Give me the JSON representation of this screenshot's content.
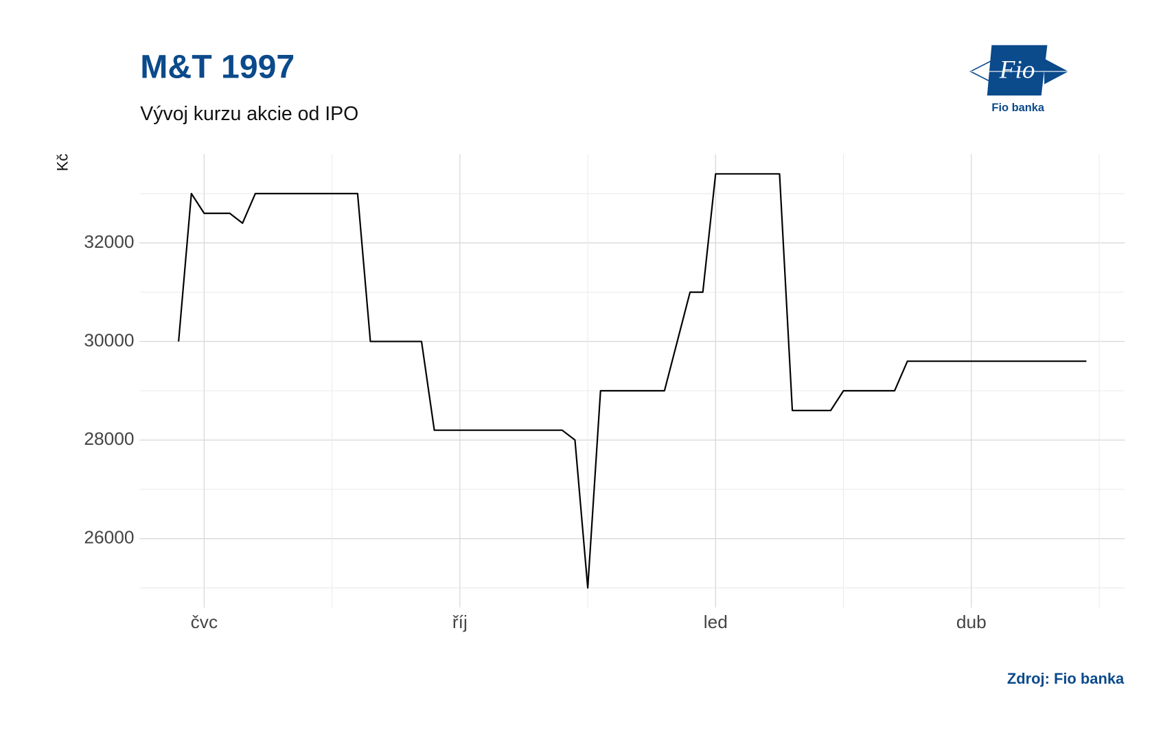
{
  "chart_data": {
    "type": "line",
    "title": "M&T 1997",
    "subtitle": "Vývoj kurzu akcie od IPO",
    "y_label": "Kč",
    "source": "Zdroj: Fio banka",
    "logo": {
      "mark": "Fio",
      "name": "Fio banka"
    },
    "categories": [
      null,
      null,
      "čvc",
      null,
      null,
      null,
      null,
      null,
      null,
      null,
      null,
      null,
      null,
      null,
      null,
      null,
      null,
      null,
      null,
      null,
      null,
      null,
      "říj",
      null,
      null,
      null,
      null,
      null,
      null,
      null,
      null,
      null,
      null,
      null,
      null,
      null,
      null,
      null,
      null,
      null,
      null,
      null,
      "led",
      null,
      null,
      null,
      null,
      null,
      null,
      null,
      null,
      null,
      null,
      null,
      null,
      null,
      null,
      null,
      null,
      null,
      null,
      null,
      "dub",
      null,
      null,
      null,
      null,
      null,
      null,
      null,
      null,
      null
    ],
    "values": [
      30000,
      33000,
      32600,
      32600,
      32600,
      32400,
      33000,
      33000,
      33000,
      33000,
      33000,
      33000,
      33000,
      33000,
      33000,
      30000,
      30000,
      30000,
      30000,
      30000,
      28200,
      28200,
      28200,
      28200,
      28200,
      28200,
      28200,
      28200,
      28200,
      28200,
      28200,
      28000,
      25000,
      29000,
      29000,
      29000,
      29000,
      29000,
      29000,
      30000,
      31000,
      31000,
      33400,
      33400,
      33400,
      33400,
      33400,
      33400,
      28600,
      28600,
      28600,
      28600,
      29000,
      29000,
      29000,
      29000,
      29000,
      29600,
      29600,
      29600,
      29600,
      29600,
      29600,
      29600,
      29600,
      29600,
      29600,
      29600,
      29600,
      29600,
      29600,
      29600
    ],
    "color": "#000000",
    "ylim": [
      24600,
      33800
    ],
    "yticks": [
      26000,
      28000,
      30000,
      32000
    ],
    "grid": true
  }
}
